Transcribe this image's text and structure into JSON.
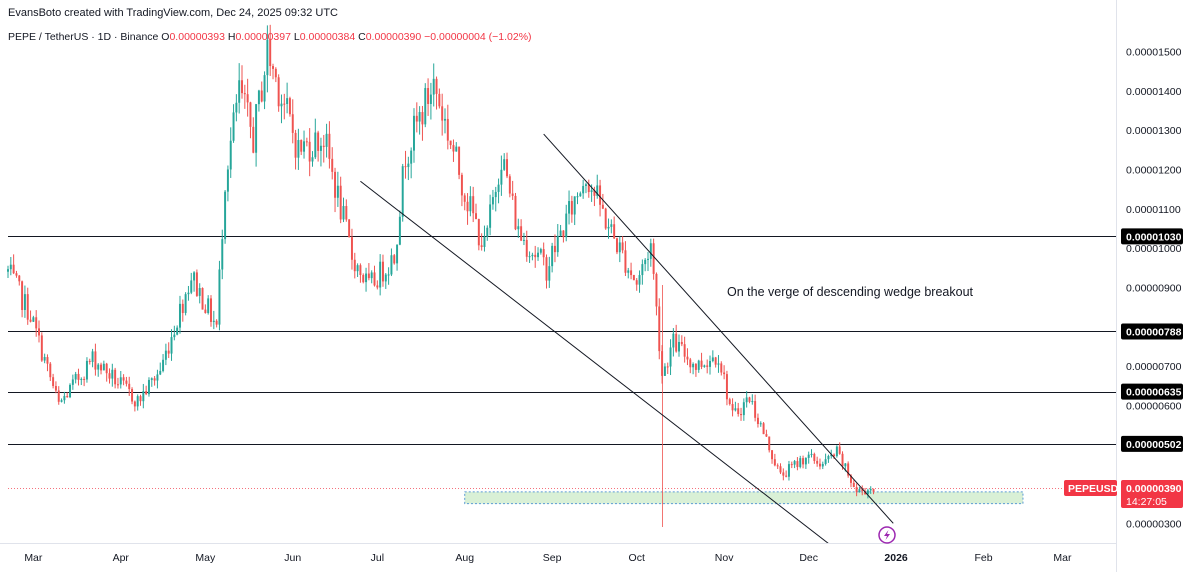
{
  "header": {
    "credit": "EvansBoto created with TradingView.com, Dec 24, 2025 09:32 UTC",
    "symbol_line": "PEPE / TetherUS · 1D · Binance",
    "open_label": "O",
    "open": "0.00000393",
    "high_label": "H",
    "high": "0.00000397",
    "low_label": "L",
    "low": "0.00000384",
    "close_label": "C",
    "close": "0.00000390",
    "change": "−0.00000004 (−1.02%)"
  },
  "colors": {
    "up": "#26a69a",
    "down": "#ef5350",
    "line": "#131722",
    "zone_fill": "#d9f0d6",
    "zone_border": "#5b9bd5",
    "price_tag": "#f23645",
    "level_tag": "#000000",
    "event": "#9c27b0"
  },
  "chart_data": {
    "type": "candlestick",
    "symbol": "PEPEUSDT",
    "timeframe": "1D",
    "x_tick_labels": [
      "Mar",
      "Apr",
      "May",
      "Jun",
      "Jul",
      "Aug",
      "Sep",
      "Oct",
      "Nov",
      "Dec",
      "2026",
      "Feb",
      "Mar"
    ],
    "y_tick_labels": [
      "0.00001500",
      "0.00001400",
      "0.00001300",
      "0.00001200",
      "0.00001100",
      "0.00001000",
      "0.00000900",
      "0.00000700",
      "0.00000600",
      "0.00000300"
    ],
    "y_range": [
      2.5e-06,
      1.57e-05
    ],
    "x_range": [
      "2025-02-20",
      "2026-03-20"
    ],
    "horizontal_levels": [
      {
        "value": 1.03e-05,
        "label": "0.00001030"
      },
      {
        "value": 7.88e-06,
        "label": "0.00000788"
      },
      {
        "value": 6.35e-06,
        "label": "0.00000635"
      },
      {
        "value": 5.02e-06,
        "label": "0.00000502"
      }
    ],
    "current_price": {
      "value": 3.9e-06,
      "label": "0.00000390",
      "symbol": "PEPEUSDT",
      "countdown": "14:27:05"
    },
    "zone": {
      "from": "2025-08-01",
      "to": "2026-02-15",
      "low": 3.5e-06,
      "high": 3.8e-06
    },
    "trendlines": [
      {
        "from": {
          "date": "2025-06-25",
          "value": 1.17e-05
        },
        "to": {
          "date": "2025-12-15",
          "value": 2.1e-06
        }
      },
      {
        "from": {
          "date": "2025-08-29",
          "value": 1.29e-05
        },
        "to": {
          "date": "2025-12-31",
          "value": 3e-06
        }
      }
    ],
    "annotation": "On the verge of descending wedge breakout",
    "vertical_marker_date": "2025-10-10",
    "anchors": [
      {
        "date": "2025-02-20",
        "close": 9.4e-06
      },
      {
        "date": "2025-02-28",
        "close": 8.3e-06
      },
      {
        "date": "2025-03-10",
        "close": 6e-06
      },
      {
        "date": "2025-03-22",
        "close": 7.2e-06
      },
      {
        "date": "2025-04-07",
        "close": 6.1e-06
      },
      {
        "date": "2025-04-15",
        "close": 6.9e-06
      },
      {
        "date": "2025-04-26",
        "close": 9.3e-06
      },
      {
        "date": "2025-05-05",
        "close": 8e-06
      },
      {
        "date": "2025-05-08",
        "close": 1.18e-05
      },
      {
        "date": "2025-05-13",
        "close": 1.4e-05
      },
      {
        "date": "2025-05-18",
        "close": 1.28e-05
      },
      {
        "date": "2025-05-23",
        "close": 1.5e-05
      },
      {
        "date": "2025-06-03",
        "close": 1.25e-05
      },
      {
        "date": "2025-06-12",
        "close": 1.28e-05
      },
      {
        "date": "2025-06-22",
        "close": 9.8e-06
      },
      {
        "date": "2025-06-28",
        "close": 9e-06
      },
      {
        "date": "2025-07-07",
        "close": 9.8e-06
      },
      {
        "date": "2025-07-11",
        "close": 1.24e-05
      },
      {
        "date": "2025-07-21",
        "close": 1.42e-05
      },
      {
        "date": "2025-08-02",
        "close": 1.12e-05
      },
      {
        "date": "2025-08-08",
        "close": 1e-05
      },
      {
        "date": "2025-08-14",
        "close": 1.24e-05
      },
      {
        "date": "2025-08-20",
        "close": 1.04e-05
      },
      {
        "date": "2025-08-30",
        "close": 9.5e-06
      },
      {
        "date": "2025-09-13",
        "close": 1.19e-05
      },
      {
        "date": "2025-09-22",
        "close": 1.04e-05
      },
      {
        "date": "2025-10-01",
        "close": 9.1e-06
      },
      {
        "date": "2025-10-06",
        "close": 1.01e-05
      },
      {
        "date": "2025-10-10",
        "close": 6.8e-06
      },
      {
        "date": "2025-10-14",
        "close": 7.6e-06
      },
      {
        "date": "2025-10-22",
        "close": 7e-06
      },
      {
        "date": "2025-10-30",
        "close": 7.3e-06
      },
      {
        "date": "2025-11-04",
        "close": 5.7e-06
      },
      {
        "date": "2025-11-10",
        "close": 6.2e-06
      },
      {
        "date": "2025-11-21",
        "close": 4.2e-06
      },
      {
        "date": "2025-11-30",
        "close": 4.7e-06
      },
      {
        "date": "2025-12-06",
        "close": 4.5e-06
      },
      {
        "date": "2025-12-11",
        "close": 4.8e-06
      },
      {
        "date": "2025-12-18",
        "close": 3.8e-06
      },
      {
        "date": "2025-12-24",
        "close": 3.9e-06
      }
    ]
  }
}
